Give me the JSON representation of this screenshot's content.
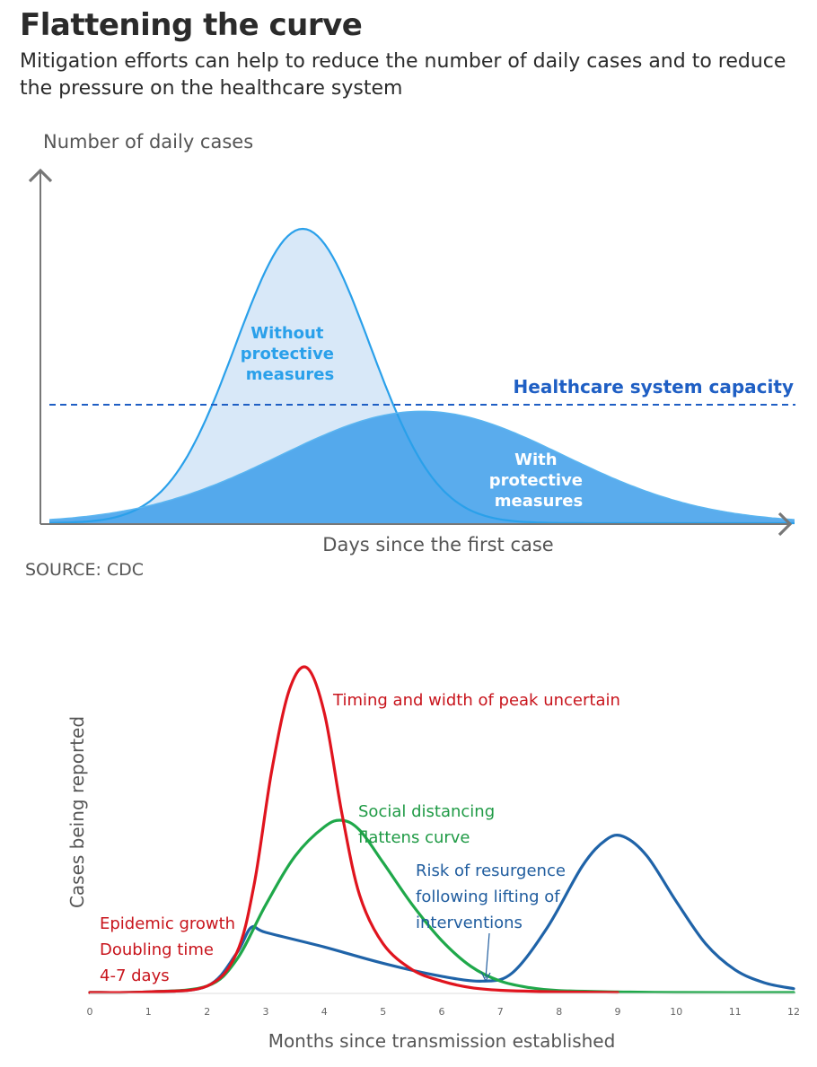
{
  "header": {
    "title": "Flattening the curve",
    "subtitle": "Mitigation efforts can help to reduce the number of daily cases and to reduce the pressure on the healthcare system"
  },
  "source": "SOURCE: CDC",
  "colors": {
    "without_fill": "#d8e8f8",
    "without_line": "#2aa0ea",
    "with_fill": "#3d9eea",
    "capacity": "#1f5fc4",
    "red": "#e0141e",
    "green": "#1fa84a",
    "blue": "#1f63a8",
    "axis": "#777777"
  },
  "chart_data": [
    {
      "type": "area",
      "title": "Flattening the curve",
      "xlabel": "Days since the first case",
      "ylabel": "Number of daily cases",
      "capacity_label": "Healthcare system capacity",
      "capacity_level": 0.4,
      "series": [
        {
          "name": "Without protective measures",
          "label_lines": [
            "Without",
            "protective",
            "measures"
          ],
          "peak_x": 0.34,
          "peak_y": 1.0,
          "width": 0.09
        },
        {
          "name": "With protective measures",
          "label_lines": [
            "With",
            "protective",
            "measures"
          ],
          "peak_x": 0.5,
          "peak_y": 0.38,
          "width": 0.19
        }
      ],
      "grid": false
    },
    {
      "type": "line",
      "xlabel": "Months since transmission established",
      "ylabel": "Cases being reported",
      "x_ticks": [
        0,
        1,
        2,
        3,
        4,
        5,
        6,
        7,
        8,
        9,
        10,
        11,
        12
      ],
      "xlim": [
        0,
        12
      ],
      "series": [
        {
          "name": "Timing and width of peak uncertain",
          "color": "red",
          "points": [
            [
              0,
              0
            ],
            [
              1,
              0.002
            ],
            [
              2,
              0.02
            ],
            [
              2.5,
              0.12
            ],
            [
              2.8,
              0.33
            ],
            [
              3.1,
              0.68
            ],
            [
              3.4,
              0.93
            ],
            [
              3.7,
              1.0
            ],
            [
              4.0,
              0.86
            ],
            [
              4.3,
              0.55
            ],
            [
              4.6,
              0.3
            ],
            [
              5.0,
              0.15
            ],
            [
              5.5,
              0.07
            ],
            [
              6.0,
              0.035
            ],
            [
              6.5,
              0.015
            ],
            [
              7,
              0.007
            ],
            [
              8,
              0.002
            ],
            [
              9,
              0
            ]
          ]
        },
        {
          "name": "Social distancing flattens curve",
          "color": "green",
          "points": [
            [
              0,
              0
            ],
            [
              1,
              0.002
            ],
            [
              2,
              0.02
            ],
            [
              2.5,
              0.1
            ],
            [
              3.0,
              0.27
            ],
            [
              3.5,
              0.42
            ],
            [
              4.0,
              0.51
            ],
            [
              4.3,
              0.53
            ],
            [
              4.6,
              0.5
            ],
            [
              5.0,
              0.4
            ],
            [
              5.5,
              0.27
            ],
            [
              6.0,
              0.16
            ],
            [
              6.5,
              0.08
            ],
            [
              7.0,
              0.035
            ],
            [
              7.5,
              0.015
            ],
            [
              8,
              0.006
            ],
            [
              9,
              0.002
            ],
            [
              10,
              0
            ],
            [
              12,
              0
            ]
          ]
        },
        {
          "name": "Risk of resurgence following lifting of interventions",
          "color": "blue",
          "points": [
            [
              0,
              0
            ],
            [
              1,
              0.002
            ],
            [
              2,
              0.02
            ],
            [
              2.5,
              0.12
            ],
            [
              2.75,
              0.2
            ],
            [
              3.0,
              0.185
            ],
            [
              4,
              0.14
            ],
            [
              5,
              0.09
            ],
            [
              6,
              0.05
            ],
            [
              6.7,
              0.035
            ],
            [
              7.2,
              0.06
            ],
            [
              7.8,
              0.2
            ],
            [
              8.4,
              0.39
            ],
            [
              8.8,
              0.47
            ],
            [
              9.1,
              0.48
            ],
            [
              9.5,
              0.42
            ],
            [
              10,
              0.28
            ],
            [
              10.5,
              0.15
            ],
            [
              11,
              0.07
            ],
            [
              11.5,
              0.03
            ],
            [
              12,
              0.012
            ]
          ]
        }
      ],
      "annotations": {
        "red": "Timing and width of peak uncertain",
        "green_lines": [
          "Social distancing",
          "flattens curve"
        ],
        "blue_lines": [
          "Risk of resurgence",
          "following lifting of",
          "interventions"
        ],
        "epidemic_lines": [
          "Epidemic growth",
          "Doubling time",
          "4-7 days"
        ]
      },
      "grid": false
    }
  ]
}
